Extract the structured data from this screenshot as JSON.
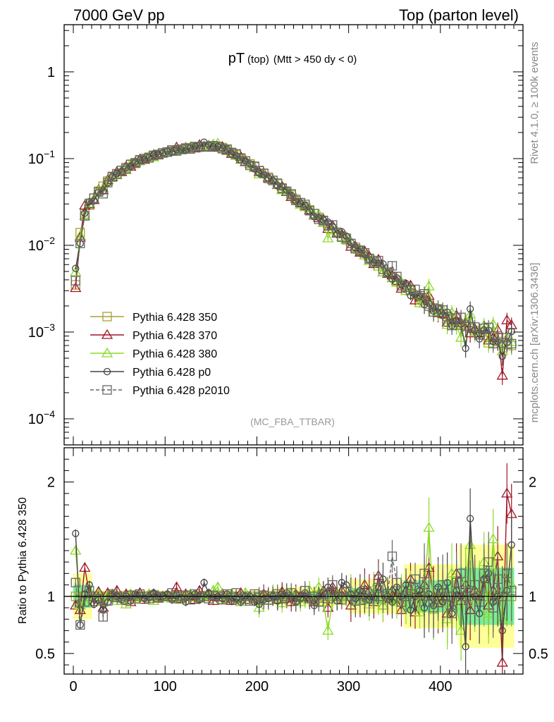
{
  "header": {
    "left": "7000 GeV pp",
    "right": "Top (parton level)"
  },
  "side_labels": {
    "rivet": "Rivet 4.1.0, ≥ 100k events",
    "mcplots": "mcplots.cern.ch [arXiv:1306.3436]"
  },
  "chart_data": {
    "type": "line",
    "title_main": "pT",
    "title_sub": "(top)",
    "title_cut": "(Mtt > 450 dy < 0)",
    "analysis_tag": "(MC_FBA_TTBAR)",
    "xlabel": "",
    "ylabel": "",
    "ratio_ylabel": "Ratio to Pythia 6.428 350",
    "xlim": [
      -10,
      490
    ],
    "ylim": [
      5e-05,
      3.5
    ],
    "ratio_ylim": [
      0.32,
      2.3
    ],
    "y_log": true,
    "x_ticks": [
      "0",
      "100",
      "200",
      "300",
      "400"
    ],
    "y_ticks": [
      {
        "base": "1",
        "exp": ""
      },
      {
        "base": "10",
        "exp": "−1"
      },
      {
        "base": "10",
        "exp": "−2"
      },
      {
        "base": "10",
        "exp": "−3"
      },
      {
        "base": "10",
        "exp": "−4"
      }
    ],
    "ratio_ticks": [
      "0.5",
      "1",
      "2"
    ],
    "x": [
      2.5,
      7.5,
      12.5,
      17.5,
      22.5,
      27.5,
      32.5,
      37.5,
      42.5,
      47.5,
      52.5,
      57.5,
      62.5,
      67.5,
      72.5,
      77.5,
      82.5,
      87.5,
      92.5,
      97.5,
      102.5,
      107.5,
      112.5,
      117.5,
      122.5,
      127.5,
      132.5,
      137.5,
      142.5,
      147.5,
      152.5,
      157.5,
      162.5,
      167.5,
      172.5,
      177.5,
      182.5,
      187.5,
      192.5,
      197.5,
      202.5,
      207.5,
      212.5,
      217.5,
      222.5,
      227.5,
      232.5,
      237.5,
      242.5,
      247.5,
      252.5,
      257.5,
      262.5,
      267.5,
      272.5,
      277.5,
      282.5,
      287.5,
      292.5,
      297.5,
      302.5,
      307.5,
      312.5,
      317.5,
      322.5,
      327.5,
      332.5,
      337.5,
      342.5,
      347.5,
      352.5,
      357.5,
      362.5,
      367.5,
      372.5,
      377.5,
      382.5,
      387.5,
      392.5,
      397.5,
      402.5,
      407.5,
      412.5,
      417.5,
      422.5,
      427.5,
      432.5,
      437.5,
      442.5,
      447.5,
      452.5,
      457.5,
      462.5,
      467.5,
      472.5,
      477.5
    ],
    "reference": [
      0.0035,
      0.014,
      0.023,
      0.029,
      0.035,
      0.042,
      0.048,
      0.055,
      0.061,
      0.067,
      0.073,
      0.079,
      0.085,
      0.09,
      0.095,
      0.1,
      0.104,
      0.108,
      0.112,
      0.116,
      0.119,
      0.122,
      0.125,
      0.128,
      0.131,
      0.133,
      0.135,
      0.137,
      0.138,
      0.139,
      0.139,
      0.138,
      0.134,
      0.126,
      0.118,
      0.11,
      0.102,
      0.094,
      0.087,
      0.08,
      0.073,
      0.067,
      0.061,
      0.056,
      0.051,
      0.046,
      0.042,
      0.038,
      0.034,
      0.031,
      0.0282,
      0.0256,
      0.0232,
      0.021,
      0.019,
      0.0172,
      0.0156,
      0.0141,
      0.0128,
      0.0116,
      0.0105,
      0.0095,
      0.0086,
      0.0078,
      0.0071,
      0.0064,
      0.0058,
      0.0053,
      0.0048,
      0.0043,
      0.0039,
      0.0036,
      0.0033,
      0.003,
      0.0027,
      0.0025,
      0.0023,
      0.0021,
      0.0019,
      0.00176,
      0.00163,
      0.00151,
      0.0014,
      0.0013,
      0.00123,
      0.00116,
      0.0011,
      0.00104,
      0.00098,
      0.00092,
      0.00087,
      0.00082,
      0.00078,
      0.00075,
      0.00072,
      0.0007
    ],
    "reference_band": [
      {
        "x_max": 20,
        "yellow": 0.2,
        "green": 0.1
      },
      {
        "x_max": 220,
        "yellow": 0.05,
        "green": 0.025
      },
      {
        "x_max": 300,
        "yellow": 0.08,
        "green": 0.04
      },
      {
        "x_max": 360,
        "yellow": 0.15,
        "green": 0.07
      },
      {
        "x_max": 420,
        "yellow": 0.28,
        "green": 0.14
      },
      {
        "x_max": 490,
        "yellow": 0.45,
        "green": 0.25
      }
    ],
    "series": [
      {
        "name": "Pythia 6.428 350",
        "color": "#a8a032",
        "marker": "square",
        "dash": false,
        "ratio": [
          1.0,
          1.0,
          1.0,
          1.0,
          1.0,
          1.0,
          1.0,
          1.0,
          1.0,
          1.0,
          1.0,
          1.0,
          1.0,
          1.0,
          1.0,
          1.0,
          1.0,
          1.0,
          1.0,
          1.0,
          1.0,
          1.0,
          1.0,
          1.0,
          1.0,
          1.0,
          1.0,
          1.0,
          1.0,
          1.0,
          1.0,
          1.0,
          1.0,
          1.0,
          1.0,
          1.0,
          1.0,
          1.0,
          1.0,
          1.0,
          1.0,
          1.0,
          1.0,
          1.0,
          1.0,
          1.0,
          1.0,
          1.0,
          1.0,
          1.0,
          1.0,
          1.0,
          1.0,
          1.0,
          1.0,
          1.0,
          1.0,
          1.0,
          1.0,
          1.0,
          1.0,
          1.0,
          1.0,
          1.0,
          1.0,
          1.0,
          1.0,
          1.0,
          1.0,
          1.0,
          1.0,
          1.0,
          1.0,
          1.0,
          1.0,
          1.0,
          1.0,
          1.0,
          1.0,
          1.0,
          1.0,
          1.0,
          1.0,
          1.0,
          1.0,
          1.0,
          1.0,
          1.0,
          1.0,
          1.0,
          1.0,
          1.0,
          1.0,
          1.0,
          1.0,
          1.0
        ]
      },
      {
        "name": "Pythia 6.428 370",
        "color": "#a01525",
        "marker": "triangle",
        "dash": false,
        "ratio": [
          0.92,
          0.88,
          1.25,
          1.02,
          0.95,
          1.04,
          0.9,
          1.03,
          1.0,
          1.05,
          0.96,
          1.02,
          0.95,
          1.0,
          1.03,
          0.97,
          1.0,
          1.02,
          0.98,
          1.0,
          1.01,
          0.99,
          1.08,
          0.98,
          1.02,
          1.0,
          0.97,
          1.05,
          1.0,
          1.02,
          0.96,
          0.99,
          1.02,
          0.98,
          0.96,
          1.0,
          1.03,
          0.97,
          1.0,
          0.98,
          0.96,
          1.02,
          0.99,
          1.01,
          0.97,
          1.04,
          0.98,
          0.95,
          1.02,
          1.0,
          1.0,
          0.99,
          0.95,
          0.98,
          1.05,
          0.9,
          1.08,
          0.97,
          1.05,
          1.0,
          0.92,
          1.02,
          0.96,
          1.1,
          1.05,
          0.95,
          1.18,
          0.92,
          0.98,
          1.05,
          1.0,
          0.88,
          1.05,
          1.15,
          0.86,
          1.0,
          1.1,
          1.25,
          1.0,
          0.94,
          1.0,
          0.85,
          0.92,
          1.2,
          0.96,
          1.1,
          0.88,
          1.05,
          1.0,
          1.15,
          0.92,
          1.05,
          1.35,
          0.42,
          1.9,
          1.72
        ]
      },
      {
        "name": "Pythia 6.428 380",
        "color": "#8adb26",
        "marker": "triangle",
        "dash": false,
        "ratio": [
          1.4,
          0.92,
          0.95,
          1.05,
          0.98,
          1.02,
          0.95,
          1.0,
          1.02,
          0.96,
          1.0,
          0.93,
          1.02,
          0.97,
          0.99,
          1.0,
          1.02,
          0.96,
          1.01,
          0.99,
          1.0,
          0.98,
          1.01,
          0.97,
          1.0,
          1.02,
          0.99,
          0.98,
          1.0,
          1.01,
          1.05,
          1.08,
          0.97,
          1.0,
          1.02,
          0.98,
          0.95,
          1.03,
          1.0,
          0.97,
          0.9,
          1.0,
          0.96,
          1.02,
          0.98,
          0.94,
          1.0,
          1.03,
          1.0,
          0.95,
          0.98,
          1.05,
          0.96,
          1.08,
          0.95,
          0.7,
          0.97,
          1.02,
          0.98,
          1.0,
          1.05,
          0.96,
          1.02,
          0.98,
          0.93,
          1.07,
          0.98,
          0.92,
          1.03,
          0.97,
          0.95,
          1.05,
          0.9,
          1.08,
          1.0,
          0.86,
          1.05,
          1.6,
          0.88,
          0.98,
          1.1,
          0.8,
          1.2,
          0.92,
          0.7,
          1.15,
          1.45,
          0.95,
          1.05,
          1.3,
          0.85,
          1.5,
          1.0,
          0.8,
          1.2,
          1.1
        ]
      },
      {
        "name": "Pythia 6.428 p0",
        "color": "#444444",
        "marker": "circle",
        "dash": false,
        "ratio": [
          1.55,
          0.75,
          1.02,
          1.1,
          0.93,
          0.97,
          0.88,
          0.95,
          1.02,
          1.0,
          0.97,
          1.0,
          0.96,
          1.02,
          1.01,
          0.98,
          0.99,
          1.03,
          1.0,
          1.0,
          1.02,
          0.97,
          1.01,
          0.99,
          0.95,
          1.0,
          1.02,
          0.97,
          1.12,
          1.03,
          0.99,
          1.0,
          0.98,
          1.02,
          0.96,
          0.98,
          0.95,
          1.0,
          1.0,
          0.95,
          0.93,
          0.97,
          0.98,
          1.0,
          0.96,
          1.02,
          1.03,
          0.99,
          0.95,
          0.98,
          1.03,
          0.97,
          0.92,
          1.0,
          1.03,
          1.08,
          1.05,
          0.96,
          1.12,
          1.1,
          1.02,
          0.98,
          1.05,
          1.0,
          0.97,
          0.99,
          1.08,
          1.15,
          1.0,
          0.95,
          1.08,
          1.0,
          1.1,
          0.88,
          1.0,
          1.05,
          0.9,
          1.02,
          0.92,
          1.08,
          0.95,
          1.12,
          0.85,
          1.05,
          1.0,
          0.56,
          1.68,
          1.0,
          0.85,
          1.15,
          1.2,
          0.95,
          1.0,
          0.7,
          1.05,
          1.45
        ]
      },
      {
        "name": "Pythia 6.428 p2010",
        "color": "#666666",
        "marker": "square",
        "dash": true,
        "ratio": [
          1.12,
          0.75,
          0.95,
          1.05,
          1.0,
          0.98,
          0.82,
          0.96,
          1.02,
          0.99,
          1.0,
          0.97,
          1.01,
          0.98,
          1.02,
          1.0,
          0.98,
          1.01,
          0.99,
          1.0,
          1.0,
          1.03,
          0.98,
          1.0,
          1.01,
          0.97,
          1.02,
          0.99,
          1.0,
          0.98,
          1.01,
          1.0,
          0.97,
          1.02,
          0.99,
          1.03,
          0.98,
          1.0,
          0.96,
          1.02,
          0.99,
          1.01,
          0.97,
          1.0,
          1.02,
          0.98,
          1.0,
          1.03,
          0.97,
          1.0,
          1.05,
          0.98,
          1.0,
          0.95,
          1.02,
          0.98,
          1.1,
          1.0,
          0.97,
          1.04,
          1.0,
          0.96,
          1.02,
          1.05,
          0.98,
          1.0,
          1.15,
          1.0,
          1.02,
          1.35,
          1.12,
          0.95,
          1.0,
          1.02,
          1.15,
          1.05,
          1.2,
          0.95,
          0.9,
          1.05,
          1.1,
          1.0,
          0.85,
          1.12,
          1.2,
          1.0,
          1.05,
          1.1,
          0.95,
          1.2,
          1.3,
          0.9,
          1.15,
          1.0,
          1.2,
          1.05
        ]
      }
    ]
  }
}
